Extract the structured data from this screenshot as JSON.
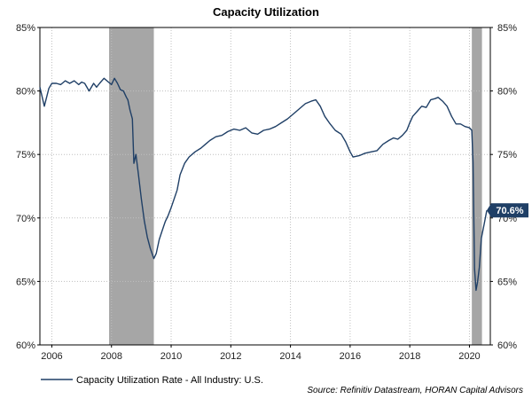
{
  "chart_data": {
    "type": "line",
    "title": "Capacity Utilization",
    "x_range": [
      2005.6,
      2020.7
    ],
    "ylim": [
      60,
      85
    ],
    "y_ticks": [
      60,
      65,
      70,
      75,
      80,
      85
    ],
    "y_tick_labels": [
      "60%",
      "65%",
      "70%",
      "75%",
      "80%",
      "85%"
    ],
    "x_ticks": [
      2006,
      2008,
      2010,
      2012,
      2014,
      2016,
      2018,
      2020
    ],
    "x_tick_labels": [
      "2006",
      "2008",
      "2010",
      "2012",
      "2014",
      "2016",
      "2018",
      "2020"
    ],
    "dual_y_axis": true,
    "grid": true,
    "legend_position": "bottom-left",
    "recession_bands": [
      [
        2007.92,
        2009.42
      ],
      [
        2020.08,
        2020.42
      ]
    ],
    "series": [
      {
        "name": "Capacity Utilization Rate - All Industry: U.S.",
        "color": "#1f3f66",
        "x": [
          2005.6,
          2005.75,
          2005.9,
          2006.0,
          2006.15,
          2006.3,
          2006.45,
          2006.6,
          2006.75,
          2006.9,
          2007.0,
          2007.1,
          2007.25,
          2007.4,
          2007.5,
          2007.6,
          2007.75,
          2007.9,
          2008.0,
          2008.1,
          2008.2,
          2008.3,
          2008.4,
          2008.5,
          2008.55,
          2008.62,
          2008.7,
          2008.75,
          2008.82,
          2008.9,
          2009.0,
          2009.1,
          2009.2,
          2009.3,
          2009.42,
          2009.5,
          2009.6,
          2009.7,
          2009.8,
          2009.9,
          2010.0,
          2010.1,
          2010.2,
          2010.3,
          2010.45,
          2010.6,
          2010.8,
          2011.0,
          2011.15,
          2011.3,
          2011.5,
          2011.7,
          2011.9,
          2012.1,
          2012.3,
          2012.5,
          2012.7,
          2012.9,
          2013.1,
          2013.3,
          2013.5,
          2013.7,
          2013.9,
          2014.1,
          2014.3,
          2014.5,
          2014.7,
          2014.85,
          2015.0,
          2015.15,
          2015.3,
          2015.5,
          2015.7,
          2015.85,
          2016.0,
          2016.1,
          2016.3,
          2016.5,
          2016.7,
          2016.9,
          2017.1,
          2017.3,
          2017.45,
          2017.6,
          2017.75,
          2017.9,
          2018.0,
          2018.1,
          2018.25,
          2018.4,
          2018.55,
          2018.7,
          2018.85,
          2018.95,
          2019.1,
          2019.25,
          2019.4,
          2019.55,
          2019.7,
          2019.85,
          2020.0,
          2020.08,
          2020.12,
          2020.17,
          2020.22,
          2020.27,
          2020.33,
          2020.4,
          2020.5,
          2020.58
        ],
        "y": [
          80.3,
          78.8,
          80.2,
          80.6,
          80.6,
          80.5,
          80.8,
          80.6,
          80.8,
          80.5,
          80.7,
          80.6,
          80.0,
          80.6,
          80.3,
          80.6,
          81.0,
          80.7,
          80.5,
          81.0,
          80.6,
          80.1,
          80.0,
          79.5,
          79.3,
          78.5,
          77.8,
          74.3,
          75.0,
          73.5,
          71.5,
          69.8,
          68.5,
          67.6,
          66.8,
          67.2,
          68.3,
          69.0,
          69.7,
          70.2,
          70.8,
          71.5,
          72.2,
          73.4,
          74.3,
          74.8,
          75.2,
          75.5,
          75.8,
          76.1,
          76.4,
          76.5,
          76.8,
          77.0,
          76.9,
          77.1,
          76.7,
          76.6,
          76.9,
          77.0,
          77.2,
          77.5,
          77.8,
          78.2,
          78.6,
          79.0,
          79.2,
          79.3,
          78.8,
          78.0,
          77.5,
          76.9,
          76.6,
          76.0,
          75.2,
          74.8,
          74.9,
          75.1,
          75.2,
          75.3,
          75.8,
          76.1,
          76.3,
          76.2,
          76.5,
          76.9,
          77.5,
          78.0,
          78.4,
          78.8,
          78.7,
          79.3,
          79.4,
          79.5,
          79.2,
          78.8,
          78.0,
          77.4,
          77.4,
          77.2,
          77.1,
          76.9,
          74.4,
          66.0,
          64.3,
          64.9,
          66.1,
          68.4,
          69.6,
          70.6
        ]
      }
    ],
    "callout_value": "70.6%",
    "legend_label": "Capacity Utilization Rate - All Industry: U.S.",
    "source": "Source: Refinitiv Datastream, HORAN Capital Advisors"
  }
}
